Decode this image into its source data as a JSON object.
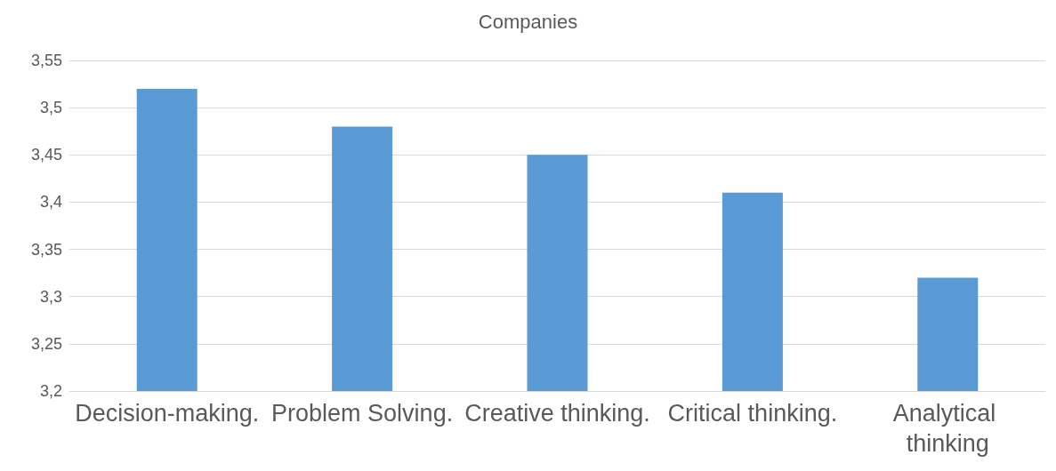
{
  "chart_data": {
    "type": "bar",
    "title": "Companies",
    "categories": [
      "Decision-making.",
      "Problem Solving.",
      "Creative thinking.",
      "Critical thinking.",
      "Analytical thinking"
    ],
    "values": [
      3.52,
      3.48,
      3.45,
      3.41,
      3.32
    ],
    "color": "#5b9bd5",
    "ylim": [
      3.2,
      3.55
    ],
    "yticks": [
      {
        "value": 3.2,
        "label": "3,2"
      },
      {
        "value": 3.25,
        "label": "3,25"
      },
      {
        "value": 3.3,
        "label": "3,3"
      },
      {
        "value": 3.35,
        "label": "3,35"
      },
      {
        "value": 3.4,
        "label": "3,4"
      },
      {
        "value": 3.45,
        "label": "3,45"
      },
      {
        "value": 3.5,
        "label": "3,5"
      },
      {
        "value": 3.55,
        "label": "3,55"
      }
    ],
    "grid": "y"
  }
}
